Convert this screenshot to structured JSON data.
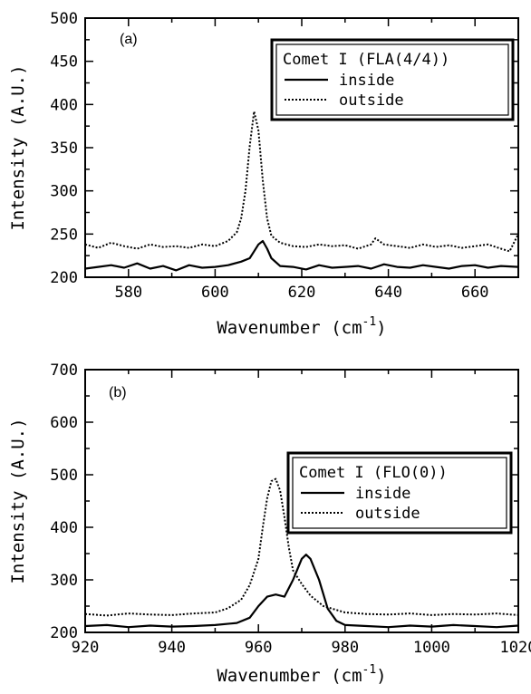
{
  "chart_data": [
    {
      "type": "line",
      "panel_label": "(a)",
      "xlabel": "Wavenumber (cm",
      "xlabel_sup": "-1",
      "xlabel_close": ")",
      "ylabel": "Intensity (A.U.)",
      "xlim": [
        570,
        670
      ],
      "ylim": [
        200,
        500
      ],
      "xticks": [
        580,
        600,
        620,
        640,
        660
      ],
      "yticks": [
        200,
        250,
        300,
        350,
        400,
        450,
        500
      ],
      "legend": {
        "title": "Comet I (FLA(4/4))",
        "entries": [
          "inside",
          "outside"
        ],
        "placement": "top-right"
      },
      "series": [
        {
          "name": "inside",
          "style": "solid",
          "x": [
            570,
            573,
            576,
            579,
            582,
            585,
            588,
            591,
            594,
            597,
            600,
            603,
            606,
            608,
            609,
            610,
            611,
            612,
            613,
            615,
            618,
            621,
            624,
            627,
            630,
            633,
            636,
            639,
            642,
            645,
            648,
            651,
            654,
            657,
            660,
            663,
            666,
            670
          ],
          "y": [
            210,
            212,
            214,
            211,
            216,
            210,
            213,
            208,
            214,
            211,
            212,
            214,
            218,
            222,
            230,
            238,
            242,
            233,
            222,
            213,
            212,
            209,
            214,
            211,
            212,
            213,
            210,
            215,
            212,
            211,
            214,
            212,
            210,
            213,
            214,
            211,
            213,
            212
          ]
        },
        {
          "name": "outside",
          "style": "dotted",
          "x": [
            570,
            573,
            576,
            579,
            582,
            585,
            588,
            591,
            594,
            597,
            600,
            603,
            605,
            606,
            607,
            608,
            609,
            610,
            611,
            612,
            613,
            615,
            618,
            621,
            624,
            627,
            630,
            633,
            636,
            637,
            639,
            642,
            645,
            648,
            651,
            654,
            657,
            660,
            663,
            666,
            668,
            670
          ],
          "y": [
            238,
            234,
            240,
            236,
            233,
            238,
            235,
            236,
            234,
            238,
            236,
            242,
            252,
            268,
            300,
            352,
            392,
            370,
            312,
            268,
            248,
            240,
            236,
            235,
            238,
            236,
            237,
            233,
            238,
            245,
            238,
            236,
            234,
            238,
            235,
            237,
            234,
            236,
            238,
            233,
            230,
            250
          ]
        }
      ]
    },
    {
      "type": "line",
      "panel_label": "(b)",
      "xlabel": "Wavenumber (cm",
      "xlabel_sup": "-1",
      "xlabel_close": ")",
      "ylabel": "Intensity (A.U.)",
      "xlim": [
        920,
        1020
      ],
      "ylim": [
        200,
        700
      ],
      "xticks": [
        920,
        940,
        960,
        980,
        1000,
        1020
      ],
      "yticks": [
        200,
        300,
        400,
        500,
        600,
        700
      ],
      "legend": {
        "title": "Comet I (FLO(0))",
        "entries": [
          "inside",
          "outside"
        ],
        "placement": "right"
      },
      "series": [
        {
          "name": "inside",
          "style": "solid",
          "x": [
            920,
            925,
            930,
            935,
            940,
            945,
            950,
            955,
            958,
            960,
            962,
            964,
            966,
            968,
            970,
            971,
            972,
            974,
            976,
            978,
            980,
            985,
            990,
            995,
            1000,
            1005,
            1010,
            1015,
            1020
          ],
          "y": [
            212,
            214,
            210,
            213,
            211,
            212,
            214,
            218,
            228,
            250,
            268,
            272,
            268,
            300,
            340,
            348,
            340,
            300,
            245,
            222,
            214,
            212,
            210,
            213,
            211,
            214,
            212,
            210,
            213
          ]
        },
        {
          "name": "outside",
          "style": "dotted",
          "x": [
            920,
            925,
            930,
            935,
            940,
            945,
            950,
            953,
            956,
            958,
            960,
            961,
            962,
            963,
            964,
            965,
            966,
            967,
            968,
            970,
            972,
            975,
            980,
            985,
            990,
            995,
            1000,
            1005,
            1010,
            1015,
            1020
          ],
          "y": [
            235,
            232,
            236,
            234,
            233,
            236,
            238,
            246,
            262,
            290,
            340,
            400,
            455,
            488,
            492,
            470,
            420,
            362,
            318,
            292,
            270,
            250,
            238,
            235,
            234,
            236,
            233,
            235,
            234,
            236,
            233
          ]
        }
      ]
    }
  ]
}
